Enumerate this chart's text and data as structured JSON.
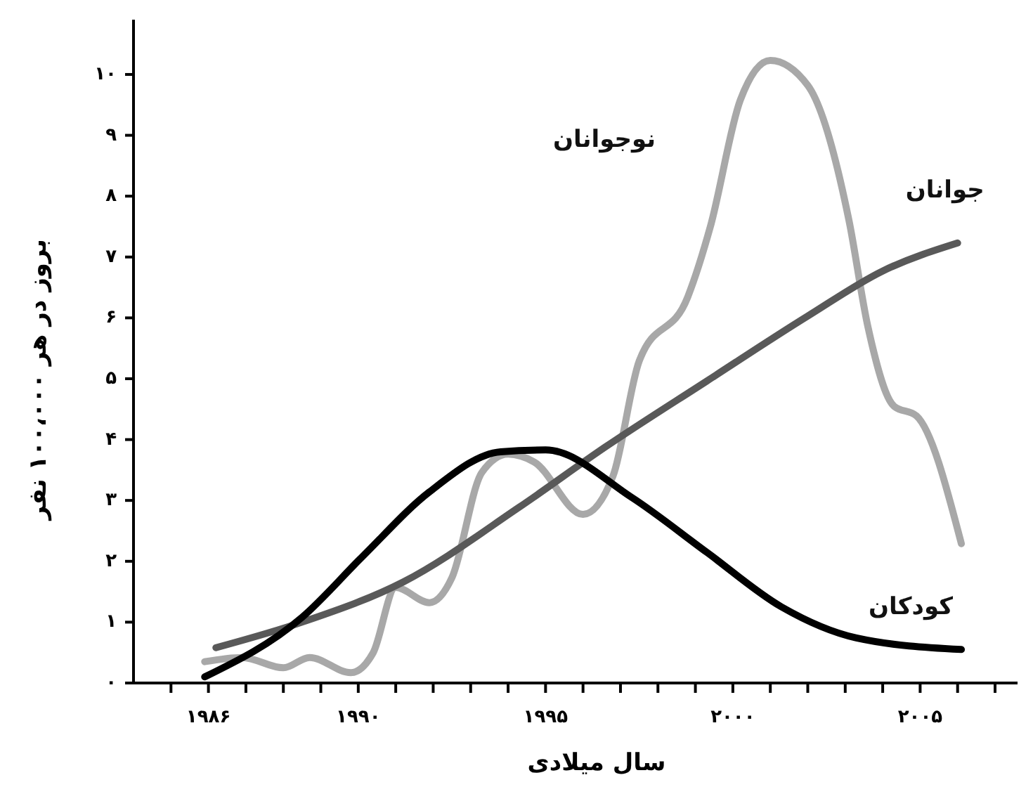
{
  "chart_data": {
    "type": "line",
    "xlabel": "سال میلادی",
    "ylabel": "بروز در هر ۱۰۰،۰۰۰ نفر",
    "xlim": [
      1984,
      2007.6
    ],
    "ylim": [
      0,
      10.9
    ],
    "xticks": [
      {
        "value": 1985,
        "label": null
      },
      {
        "value": 1986,
        "label": "۱۹۸۶"
      },
      {
        "value": 1987,
        "label": null
      },
      {
        "value": 1988,
        "label": null
      },
      {
        "value": 1989,
        "label": null
      },
      {
        "value": 1990,
        "label": "۱۹۹۰"
      },
      {
        "value": 1991,
        "label": null
      },
      {
        "value": 1992,
        "label": null
      },
      {
        "value": 1993,
        "label": null
      },
      {
        "value": 1994,
        "label": null
      },
      {
        "value": 1995,
        "label": "۱۹۹۵"
      },
      {
        "value": 1996,
        "label": null
      },
      {
        "value": 1997,
        "label": null
      },
      {
        "value": 1998,
        "label": null
      },
      {
        "value": 1999,
        "label": null
      },
      {
        "value": 2000,
        "label": "۲۰۰۰"
      },
      {
        "value": 2001,
        "label": null
      },
      {
        "value": 2002,
        "label": null
      },
      {
        "value": 2003,
        "label": null
      },
      {
        "value": 2004,
        "label": null
      },
      {
        "value": 2005,
        "label": "۲۰۰۵"
      },
      {
        "value": 2006,
        "label": null
      },
      {
        "value": 2007,
        "label": null
      }
    ],
    "yticks": [
      {
        "value": 0,
        "label": "۰"
      },
      {
        "value": 1,
        "label": "۱"
      },
      {
        "value": 2,
        "label": "۲"
      },
      {
        "value": 3,
        "label": "۳"
      },
      {
        "value": 4,
        "label": "۴"
      },
      {
        "value": 5,
        "label": "۵"
      },
      {
        "value": 6,
        "label": "۶"
      },
      {
        "value": 7,
        "label": "۷"
      },
      {
        "value": 8,
        "label": "۸"
      },
      {
        "value": 9,
        "label": "۹"
      },
      {
        "value": 10,
        "label": "۱۰"
      }
    ],
    "grid": false,
    "legend": false,
    "marker": "none",
    "line_style": "solid",
    "series": [
      {
        "name": "نوجوانان",
        "color": "#a8a8a8",
        "x": [
          1985.9,
          1986.9,
          1988.0,
          1988.7,
          1989.8,
          1990.4,
          1991.0,
          1991.9,
          1992.5,
          1993.3,
          1994.0,
          1994.7,
          1996.0,
          1996.8,
          1997.5,
          1998.8,
          1999.4,
          2000.2,
          2001.0,
          2002.0,
          2003.1,
          2003.6,
          2004.3,
          2004.9,
          2006.1
        ],
        "values": [
          0.35,
          0.42,
          0.25,
          0.42,
          0.17,
          0.5,
          1.57,
          1.32,
          1.73,
          3.46,
          3.76,
          3.63,
          2.77,
          3.4,
          5.29,
          6.35,
          7.5,
          9.58,
          10.23,
          9.82,
          7.6,
          5.87,
          4.55,
          4.39,
          2.29
        ]
      },
      {
        "name": "جوانان",
        "color": "#595959",
        "x": [
          1986.2,
          1988.5,
          1991.2,
          1994.3,
          1996.6,
          1999.3,
          2002.0,
          2004.0,
          2006.0
        ],
        "values": [
          0.58,
          1.0,
          1.66,
          2.89,
          3.88,
          4.96,
          6.03,
          6.77,
          7.23
        ]
      },
      {
        "name": "کودکان",
        "color": "#000000",
        "x": [
          1985.9,
          1988.5,
          1990.1,
          1991.9,
          1993.8,
          1995.0,
          1997.3,
          1999.3,
          2001.3,
          2003.3,
          2006.1
        ],
        "values": [
          0.1,
          1.08,
          2.07,
          3.14,
          3.8,
          3.83,
          3.05,
          2.15,
          1.25,
          0.74,
          0.55
        ]
      }
    ]
  }
}
